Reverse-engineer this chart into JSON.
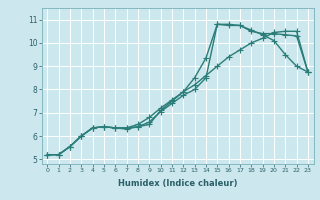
{
  "xlabel": "Humidex (Indice chaleur)",
  "ylabel": "",
  "xlim": [
    -0.5,
    23.5
  ],
  "ylim": [
    4.8,
    11.5
  ],
  "background_color": "#cce8ee",
  "grid_color": "#b0d8e0",
  "line_color": "#2a7d78",
  "line1_x": [
    0,
    1,
    2,
    3,
    4,
    5,
    6,
    7,
    8,
    9,
    10,
    11,
    12,
    13,
    14,
    15,
    16,
    17,
    18,
    19,
    20,
    21,
    22,
    23
  ],
  "line1_y": [
    5.2,
    5.2,
    5.55,
    6.0,
    6.35,
    6.4,
    6.35,
    6.35,
    6.4,
    6.6,
    7.05,
    7.4,
    7.75,
    8.0,
    8.5,
    10.8,
    10.8,
    10.75,
    10.55,
    10.35,
    10.1,
    9.5,
    9.0,
    8.75
  ],
  "line2_x": [
    0,
    1,
    2,
    3,
    4,
    5,
    6,
    7,
    8,
    9,
    10,
    11,
    12,
    13,
    14,
    15,
    16,
    17,
    18,
    19,
    20,
    21,
    22,
    23
  ],
  "line2_y": [
    5.2,
    5.2,
    5.55,
    6.0,
    6.35,
    6.4,
    6.35,
    6.3,
    6.4,
    6.5,
    7.1,
    7.5,
    7.9,
    8.5,
    9.35,
    10.8,
    10.75,
    10.75,
    10.5,
    10.4,
    10.4,
    10.35,
    10.3,
    8.75
  ],
  "line3_x": [
    0,
    1,
    2,
    3,
    4,
    5,
    6,
    7,
    8,
    9,
    10,
    11,
    12,
    13,
    14,
    15,
    16,
    17,
    18,
    19,
    20,
    21,
    22,
    23
  ],
  "line3_y": [
    5.2,
    5.2,
    5.55,
    6.0,
    6.35,
    6.4,
    6.35,
    6.35,
    6.5,
    6.8,
    7.2,
    7.55,
    7.9,
    8.2,
    8.6,
    9.0,
    9.4,
    9.7,
    10.0,
    10.2,
    10.45,
    10.5,
    10.5,
    8.75
  ],
  "xtick_labels": [
    "0",
    "1",
    "2",
    "3",
    "4",
    "5",
    "6",
    "7",
    "8",
    "9",
    "10",
    "11",
    "12",
    "13",
    "14",
    "15",
    "16",
    "17",
    "18",
    "19",
    "20",
    "21",
    "22",
    "23"
  ],
  "ytick_labels": [
    "5",
    "6",
    "7",
    "8",
    "9",
    "10",
    "11"
  ],
  "ytick_values": [
    5,
    6,
    7,
    8,
    9,
    10,
    11
  ],
  "marker_size": 2.0,
  "linewidth": 1.0
}
